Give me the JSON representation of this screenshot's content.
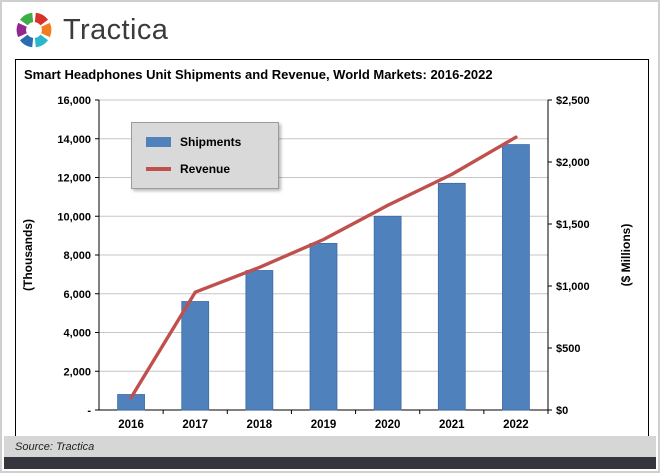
{
  "header": {
    "brand": "Tractica"
  },
  "chart": {
    "title": "Smart Headphones Unit Shipments and Revenue, World Markets: 2016-2022",
    "legend": [
      {
        "label": "Shipments",
        "type": "bar",
        "color": "#4F81BD"
      },
      {
        "label": "Revenue",
        "type": "line",
        "color": "#C0504D"
      }
    ]
  },
  "chart_data": {
    "type": "bar",
    "subtype": "bar+line dual-axis",
    "title": "Smart Headphones Unit Shipments and Revenue, World Markets: 2016-2022",
    "categories": [
      "2016",
      "2017",
      "2018",
      "2019",
      "2020",
      "2021",
      "2022"
    ],
    "series": [
      {
        "name": "Shipments",
        "type": "bar",
        "axis": "left",
        "color": "#4F81BD",
        "values": [
          800,
          5600,
          7200,
          8600,
          10000,
          11700,
          13700
        ]
      },
      {
        "name": "Revenue",
        "type": "line",
        "axis": "right",
        "color": "#C0504D",
        "values": [
          100,
          950,
          1150,
          1375,
          1650,
          1900,
          2200
        ]
      }
    ],
    "left_axis": {
      "title": "(Thousands)",
      "min": 0,
      "max": 16000,
      "step": 2000,
      "tick_labels": [
        "-",
        "2,000",
        "4,000",
        "6,000",
        "8,000",
        "10,000",
        "12,000",
        "14,000",
        "16,000"
      ]
    },
    "right_axis": {
      "title": "($ Millions)",
      "min": 0,
      "max": 2500,
      "step": 500,
      "tick_labels": [
        "$0",
        "$500",
        "$1,000",
        "$1,500",
        "$2,000",
        "$2,500"
      ]
    },
    "grid": true,
    "legend_position": "top-left-inside",
    "gridline_color": "#c6c6c6"
  },
  "footer": {
    "source": "Source: Tractica"
  }
}
